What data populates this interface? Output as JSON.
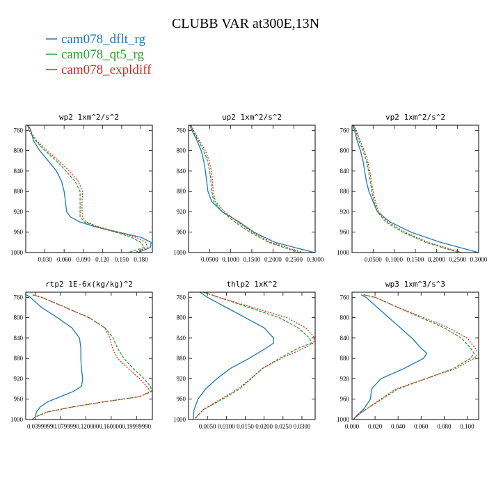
{
  "figure": {
    "title": "CLUBB VAR at300E,13N"
  },
  "legend": [
    {
      "name": "cam078_dflt_rg",
      "color": "#1f77b4",
      "dash": "solid"
    },
    {
      "name": "cam078_qt5_rg",
      "color": "#2ca02c",
      "dash": "dashed"
    },
    {
      "name": "cam078_expldiff",
      "color": "#d62728",
      "dash": "dotted"
    }
  ],
  "chart_data": [
    {
      "type": "line",
      "title": "wp2 1xm^2/s^2",
      "xlim": [
        0,
        0.198
      ],
      "ylim": [
        1000,
        750
      ],
      "yticks": [
        760,
        800,
        840,
        880,
        920,
        960,
        1000
      ],
      "xticks": [
        0.03,
        0.06,
        0.09,
        0.12,
        0.15,
        0.18
      ],
      "xticklabels": [
        "0.030",
        "0.060",
        "0.090",
        "0.120",
        "0.150",
        "0.180"
      ],
      "pressure": [
        750,
        760,
        780,
        800,
        820,
        840,
        860,
        880,
        900,
        920,
        930,
        940,
        950,
        960,
        970,
        980,
        990,
        1000
      ],
      "series": [
        {
          "name": "cam078_dflt_rg",
          "values": [
            0.004,
            0.008,
            0.012,
            0.022,
            0.035,
            0.048,
            0.056,
            0.06,
            0.062,
            0.064,
            0.07,
            0.085,
            0.11,
            0.145,
            0.18,
            0.196,
            0.195,
            0.175
          ]
        },
        {
          "name": "cam078_qt5_rg",
          "values": [
            0.003,
            0.005,
            0.015,
            0.03,
            0.048,
            0.063,
            0.077,
            0.085,
            0.085,
            0.085,
            0.085,
            0.092,
            0.112,
            0.14,
            0.165,
            0.18,
            0.185,
            0.16
          ]
        },
        {
          "name": "cam078_expldiff",
          "values": [
            0.003,
            0.006,
            0.017,
            0.033,
            0.052,
            0.068,
            0.082,
            0.089,
            0.088,
            0.088,
            0.089,
            0.095,
            0.115,
            0.145,
            0.172,
            0.188,
            0.19,
            0.17
          ]
        }
      ]
    },
    {
      "type": "line",
      "title": "up2 1xm^2/s^2",
      "xlim": [
        0,
        0.3
      ],
      "ylim": [
        1000,
        750
      ],
      "yticks": [
        760,
        800,
        840,
        880,
        920,
        960,
        1000
      ],
      "xticks": [
        0.05,
        0.1,
        0.15,
        0.2,
        0.25,
        0.3
      ],
      "xticklabels": [
        "0.0500",
        "0.1000",
        "0.1500",
        "0.2000",
        "0.2500",
        "0.3000"
      ],
      "pressure": [
        750,
        760,
        780,
        800,
        820,
        840,
        860,
        880,
        900,
        920,
        940,
        960,
        980,
        1000
      ],
      "series": [
        {
          "name": "cam078_dflt_rg",
          "values": [
            0.003,
            0.008,
            0.02,
            0.03,
            0.036,
            0.04,
            0.043,
            0.046,
            0.055,
            0.08,
            0.12,
            0.155,
            0.205,
            0.298
          ]
        },
        {
          "name": "cam078_qt5_rg",
          "values": [
            0.005,
            0.01,
            0.023,
            0.036,
            0.045,
            0.05,
            0.053,
            0.055,
            0.06,
            0.08,
            0.11,
            0.145,
            0.19,
            0.262
          ]
        },
        {
          "name": "cam078_expldiff",
          "values": [
            0.006,
            0.012,
            0.026,
            0.04,
            0.049,
            0.054,
            0.057,
            0.058,
            0.064,
            0.085,
            0.117,
            0.151,
            0.196,
            0.27
          ]
        }
      ]
    },
    {
      "type": "line",
      "title": "vp2 1xm^2/s^2",
      "xlim": [
        0,
        0.3
      ],
      "ylim": [
        1000,
        750
      ],
      "yticks": [
        760,
        800,
        840,
        880,
        920,
        960,
        1000
      ],
      "xticks": [
        0.05,
        0.1,
        0.15,
        0.2,
        0.25,
        0.3
      ],
      "xticklabels": [
        "0.0500",
        "0.1000",
        "0.1500",
        "0.2000",
        "0.2500",
        "0.3000"
      ],
      "pressure": [
        750,
        760,
        780,
        800,
        820,
        840,
        860,
        880,
        900,
        920,
        940,
        960,
        980,
        1000
      ],
      "series": [
        {
          "name": "cam078_dflt_rg",
          "values": [
            0.002,
            0.006,
            0.012,
            0.02,
            0.026,
            0.03,
            0.034,
            0.04,
            0.05,
            0.06,
            0.09,
            0.14,
            0.21,
            0.3
          ]
        },
        {
          "name": "cam078_qt5_rg",
          "values": [
            0.003,
            0.008,
            0.016,
            0.026,
            0.034,
            0.039,
            0.043,
            0.047,
            0.052,
            0.06,
            0.08,
            0.12,
            0.175,
            0.252
          ]
        },
        {
          "name": "cam078_expldiff",
          "values": [
            0.004,
            0.01,
            0.019,
            0.029,
            0.037,
            0.042,
            0.046,
            0.05,
            0.055,
            0.063,
            0.085,
            0.125,
            0.18,
            0.26
          ]
        }
      ]
    },
    {
      "type": "line",
      "title": "rtp2 1E-6x(kg/kg)^2",
      "xlim": [
        0.025,
        0.225
      ],
      "ylim": [
        1000,
        750
      ],
      "yticks": [
        760,
        800,
        840,
        880,
        920,
        960,
        1000
      ],
      "xticks": [
        0.04,
        0.08,
        0.12,
        0.16,
        0.2
      ],
      "xticklabels": [
        "0.03999990.0799990.1200000.1600000.19999990",
        "",
        "",
        "",
        ""
      ],
      "pressure": [
        755,
        760,
        780,
        800,
        820,
        840,
        860,
        880,
        900,
        920,
        935,
        945,
        955,
        965,
        975,
        985,
        995,
        1000
      ],
      "series": [
        {
          "name": "cam078_dflt_rg",
          "values": [
            0.026,
            0.032,
            0.05,
            0.075,
            0.098,
            0.11,
            0.112,
            0.112,
            0.113,
            0.115,
            0.113,
            0.1,
            0.08,
            0.06,
            0.048,
            0.042,
            0.04,
            0.04
          ]
        },
        {
          "name": "cam078_qt5_rg",
          "values": [
            0.036,
            0.05,
            0.088,
            0.125,
            0.15,
            0.163,
            0.17,
            0.18,
            0.195,
            0.212,
            0.222,
            0.224,
            0.205,
            0.15,
            0.1,
            0.06,
            0.04,
            0.035
          ]
        },
        {
          "name": "cam078_expldiff",
          "values": [
            0.036,
            0.05,
            0.088,
            0.125,
            0.15,
            0.158,
            0.162,
            0.17,
            0.187,
            0.205,
            0.216,
            0.222,
            0.205,
            0.15,
            0.1,
            0.06,
            0.04,
            0.035
          ]
        }
      ]
    },
    {
      "type": "line",
      "title": "thlp2 1xK^2",
      "xlim": [
        0,
        0.0335
      ],
      "ylim": [
        1000,
        750
      ],
      "yticks": [
        760,
        800,
        840,
        880,
        920,
        960,
        1000
      ],
      "xticks": [
        0.005,
        0.01,
        0.015,
        0.02,
        0.025,
        0.03
      ],
      "xticklabels": [
        "0.0050",
        "0.0100",
        "0.0150",
        "0.0200",
        "0.0250",
        "0.0300"
      ],
      "pressure": [
        750,
        760,
        780,
        800,
        820,
        840,
        850,
        860,
        880,
        900,
        920,
        940,
        960,
        980,
        1000
      ],
      "series": [
        {
          "name": "cam078_dflt_rg",
          "values": [
            0.003,
            0.005,
            0.01,
            0.015,
            0.02,
            0.0225,
            0.0225,
            0.0205,
            0.016,
            0.011,
            0.0075,
            0.0045,
            0.0025,
            0.0015,
            0.0012
          ]
        },
        {
          "name": "cam078_qt5_rg",
          "values": [
            0.004,
            0.008,
            0.016,
            0.024,
            0.029,
            0.032,
            0.0325,
            0.029,
            0.024,
            0.0195,
            0.0165,
            0.0135,
            0.009,
            0.004,
            0.0015
          ]
        },
        {
          "name": "cam078_expldiff",
          "values": [
            0.004,
            0.008,
            0.017,
            0.026,
            0.031,
            0.0335,
            0.033,
            0.0305,
            0.0245,
            0.0195,
            0.0165,
            0.013,
            0.0085,
            0.004,
            0.0015
          ]
        }
      ]
    },
    {
      "type": "line",
      "title": "wp3 1xm^3/s^3",
      "xlim": [
        0,
        0.11
      ],
      "ylim": [
        1000,
        750
      ],
      "yticks": [
        760,
        800,
        840,
        880,
        920,
        960,
        1000
      ],
      "xticks": [
        0,
        0.02,
        0.04,
        0.06,
        0.08,
        0.1
      ],
      "xticklabels": [
        "0.000",
        "0.020",
        "0.040",
        "0.060",
        "0.080",
        "0.100"
      ],
      "pressure": [
        755,
        760,
        780,
        800,
        820,
        840,
        860,
        870,
        880,
        900,
        920,
        940,
        960,
        980,
        990,
        1000
      ],
      "series": [
        {
          "name": "cam078_dflt_rg",
          "values": [
            0.008,
            0.012,
            0.022,
            0.032,
            0.042,
            0.052,
            0.06,
            0.065,
            0.062,
            0.045,
            0.025,
            0.017,
            0.016,
            0.01,
            0.005,
            0.001
          ]
        },
        {
          "name": "cam078_qt5_rg",
          "values": [
            0.01,
            0.02,
            0.04,
            0.06,
            0.08,
            0.095,
            0.103,
            0.106,
            0.103,
            0.088,
            0.064,
            0.04,
            0.026,
            0.012,
            0.006,
            0.001
          ]
        },
        {
          "name": "cam078_expldiff",
          "values": [
            0.01,
            0.02,
            0.04,
            0.062,
            0.084,
            0.1,
            0.107,
            0.11,
            0.106,
            0.09,
            0.064,
            0.038,
            0.025,
            0.012,
            0.006,
            0.001
          ]
        }
      ]
    }
  ]
}
